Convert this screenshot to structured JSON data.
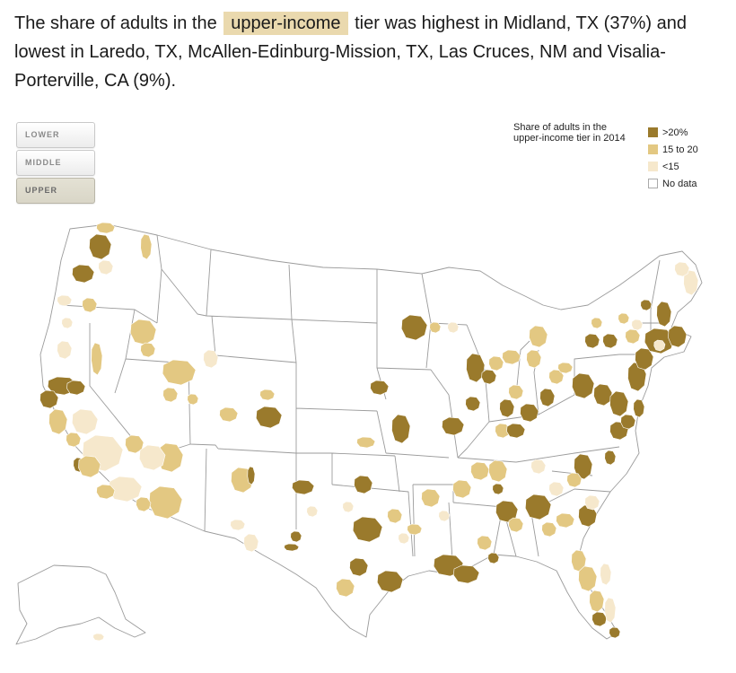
{
  "headline": {
    "before": "The share of adults in the",
    "highlight": "upper-income",
    "after": "tier was highest in Midland, TX (37%) and lowest in Laredo, TX, McAllen-Edinburg-Mission, TX, Las Cruces, NM and Visalia-Porterville, CA (9%)."
  },
  "tabs": [
    {
      "label": "LOWER",
      "active": false
    },
    {
      "label": "MIDDLE",
      "active": false
    },
    {
      "label": "UPPER",
      "active": true
    }
  ],
  "legend": {
    "title": "Share of adults in the upper-income tier in 2014",
    "items": [
      {
        "label": ">20%",
        "color": "#9a7a2c"
      },
      {
        "label": "15 to 20",
        "color": "#e3c882"
      },
      {
        "label": "<15",
        "color": "#f6e8cc"
      },
      {
        "label": "No data",
        "color": "#ffffff"
      }
    ]
  },
  "colors": {
    "high": "#9a7a2c",
    "mid": "#e3c882",
    "low": "#f6e8cc",
    "state_border": "#9b9b9b",
    "highlight_bg": "#ead9ae"
  }
}
